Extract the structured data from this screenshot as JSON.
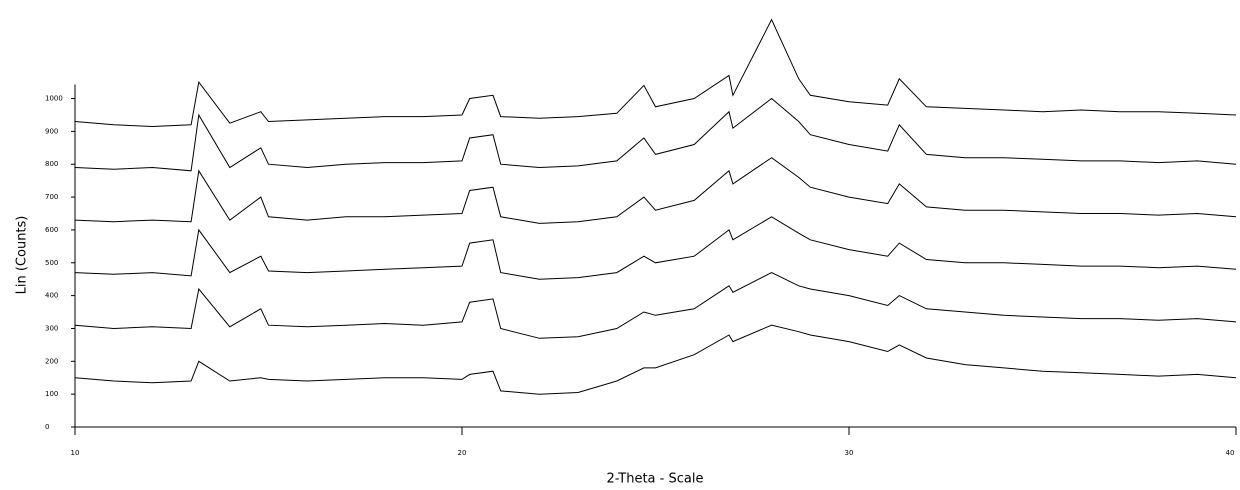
{
  "chart_data": {
    "type": "waterfall",
    "ylabel": "Lin (Counts)",
    "xlabel": "2-Theta - Scale",
    "x": [
      10,
      11,
      12,
      13,
      13.2,
      14,
      14.8,
      15,
      16,
      17,
      18,
      19,
      20,
      20.2,
      20.8,
      21,
      22,
      23,
      24,
      24.7,
      25,
      26,
      26.9,
      27,
      28,
      28.7,
      29,
      30,
      31,
      31.3,
      32,
      33,
      34,
      35,
      36,
      37,
      38,
      39,
      40
    ],
    "series": [
      {
        "color": "#000000",
        "values": [
          150,
          140,
          135,
          140,
          200,
          140,
          150,
          145,
          140,
          145,
          150,
          150,
          145,
          160,
          170,
          110,
          100,
          105,
          140,
          180,
          180,
          220,
          280,
          260,
          310,
          290,
          280,
          260,
          230,
          250,
          210,
          190,
          180,
          170,
          165,
          160,
          155,
          160,
          150
        ]
      },
      {
        "color": "#000000",
        "values": [
          310,
          300,
          305,
          300,
          420,
          305,
          360,
          310,
          305,
          310,
          315,
          310,
          320,
          380,
          390,
          300,
          270,
          275,
          300,
          350,
          340,
          360,
          430,
          410,
          470,
          430,
          420,
          400,
          370,
          400,
          360,
          350,
          340,
          335,
          330,
          330,
          325,
          330,
          320
        ]
      },
      {
        "color": "#000000",
        "values": [
          470,
          465,
          470,
          460,
          600,
          470,
          520,
          475,
          470,
          475,
          480,
          485,
          490,
          560,
          570,
          470,
          450,
          455,
          470,
          520,
          500,
          520,
          600,
          570,
          640,
          590,
          570,
          540,
          520,
          560,
          510,
          500,
          500,
          495,
          490,
          490,
          485,
          490,
          480
        ]
      },
      {
        "color": "#000000",
        "values": [
          630,
          625,
          630,
          625,
          780,
          630,
          700,
          640,
          630,
          640,
          640,
          645,
          650,
          720,
          730,
          640,
          620,
          625,
          640,
          700,
          660,
          690,
          780,
          740,
          820,
          760,
          730,
          700,
          680,
          740,
          670,
          660,
          660,
          655,
          650,
          650,
          645,
          650,
          640
        ]
      },
      {
        "color": "#000000",
        "values": [
          790,
          785,
          790,
          780,
          950,
          790,
          850,
          800,
          790,
          800,
          805,
          805,
          810,
          880,
          890,
          800,
          790,
          795,
          810,
          880,
          830,
          860,
          960,
          910,
          1000,
          930,
          890,
          860,
          840,
          920,
          830,
          820,
          820,
          815,
          810,
          810,
          805,
          810,
          800
        ]
      },
      {
        "color": "#000000",
        "values": [
          930,
          920,
          915,
          920,
          1050,
          925,
          960,
          930,
          935,
          940,
          945,
          945,
          950,
          1000,
          1010,
          945,
          940,
          945,
          955,
          1040,
          975,
          1000,
          1070,
          1010,
          1240,
          1060,
          1010,
          990,
          980,
          1060,
          975,
          970,
          965,
          960,
          965,
          960,
          960,
          955,
          950
        ]
      }
    ],
    "xlim": [
      10,
      40
    ],
    "xticks": [
      10,
      20,
      30,
      40
    ],
    "ylim": [
      0,
      1300
    ],
    "yticks": [
      0,
      100,
      200,
      300,
      400,
      500,
      600,
      700,
      800,
      900,
      1000
    ]
  }
}
